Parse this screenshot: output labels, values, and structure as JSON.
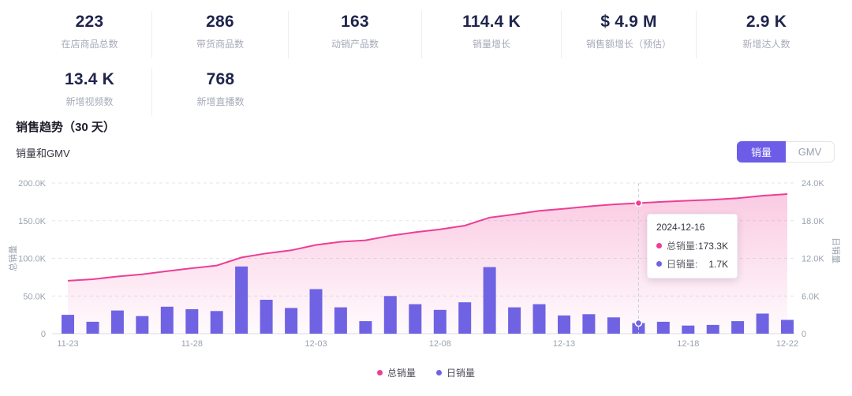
{
  "stats": {
    "row1": [
      {
        "value": "223",
        "label": "在店商品总数"
      },
      {
        "value": "286",
        "label": "带货商品数"
      },
      {
        "value": "163",
        "label": "动销产品数"
      },
      {
        "value": "114.4 K",
        "label": "销量增长"
      },
      {
        "value": "$ 4.9 M",
        "label": "销售额增长（预估）"
      },
      {
        "value": "2.9 K",
        "label": "新增达人数"
      }
    ],
    "row2": [
      {
        "value": "13.4 K",
        "label": "新增视频数"
      },
      {
        "value": "768",
        "label": "新增直播数"
      }
    ]
  },
  "section": {
    "title": "销售趋势（30 天）",
    "subtitle": "销量和GMV"
  },
  "toggle": {
    "options": [
      {
        "label": "销量",
        "active": true
      },
      {
        "label": "GMV",
        "active": false
      }
    ]
  },
  "chart_data": {
    "type": "line+bar",
    "x": [
      "11-23",
      "11-24",
      "11-25",
      "11-26",
      "11-27",
      "11-28",
      "11-29",
      "11-30",
      "12-01",
      "12-02",
      "12-03",
      "12-04",
      "12-05",
      "12-06",
      "12-07",
      "12-08",
      "12-09",
      "12-10",
      "12-11",
      "12-12",
      "12-13",
      "12-14",
      "12-15",
      "12-16",
      "12-17",
      "12-18",
      "12-19",
      "12-20",
      "12-21",
      "12-22"
    ],
    "x_tick_indices": [
      0,
      5,
      10,
      15,
      20,
      25,
      29
    ],
    "series": [
      {
        "name": "总销量",
        "type": "line",
        "axis": "left",
        "color": "#ed3e95",
        "values": [
          70.3,
          72.2,
          75.9,
          78.7,
          83.0,
          86.9,
          90.5,
          101.2,
          106.6,
          110.7,
          117.8,
          122.0,
          124.0,
          130.0,
          134.7,
          138.5,
          143.5,
          154.1,
          158.3,
          163.0,
          165.9,
          169.0,
          171.6,
          173.3,
          175.2,
          176.5,
          177.9,
          179.9,
          183.1,
          185.3
        ]
      },
      {
        "name": "日销量",
        "type": "bar",
        "axis": "right",
        "color": "#6f63e3",
        "values": [
          3.0,
          1.9,
          3.7,
          2.8,
          4.3,
          3.9,
          3.6,
          10.7,
          5.4,
          4.1,
          7.1,
          4.2,
          2.0,
          6.0,
          4.7,
          3.8,
          5.0,
          10.6,
          4.2,
          4.7,
          2.9,
          3.1,
          2.6,
          1.7,
          1.9,
          1.3,
          1.4,
          2.0,
          3.2,
          2.2
        ]
      }
    ],
    "unit": "K",
    "left_axis": {
      "title": "总销量",
      "max": 200,
      "ticks": [
        "0",
        "50.0K",
        "100.0K",
        "150.0K",
        "200.0K"
      ]
    },
    "right_axis": {
      "title": "日销量",
      "max": 24,
      "ticks": [
        "0",
        "6.0K",
        "12.0K",
        "18.0K",
        "24.0K"
      ]
    },
    "grid": "horizontal dashed",
    "legend_position": "bottom center",
    "legend": [
      {
        "label": "总销量",
        "color": "#ed3e95"
      },
      {
        "label": "日销量",
        "color": "#6f63e3"
      }
    ],
    "tooltip": {
      "date": "2024-12-16",
      "index": 23,
      "rows": [
        {
          "label": "总销量:",
          "value": "173.3K",
          "color": "#ed3e95"
        },
        {
          "label": "日销量:",
          "value": "1.7K",
          "color": "#6f63e3"
        }
      ]
    }
  },
  "colors": {
    "accent": "#6c5ce7",
    "line_pink": "#ed3e95",
    "bar_purple": "#6f63e3",
    "stat_number": "#20254d",
    "stat_label": "#a7abba",
    "axis_text": "#9aa2af"
  }
}
